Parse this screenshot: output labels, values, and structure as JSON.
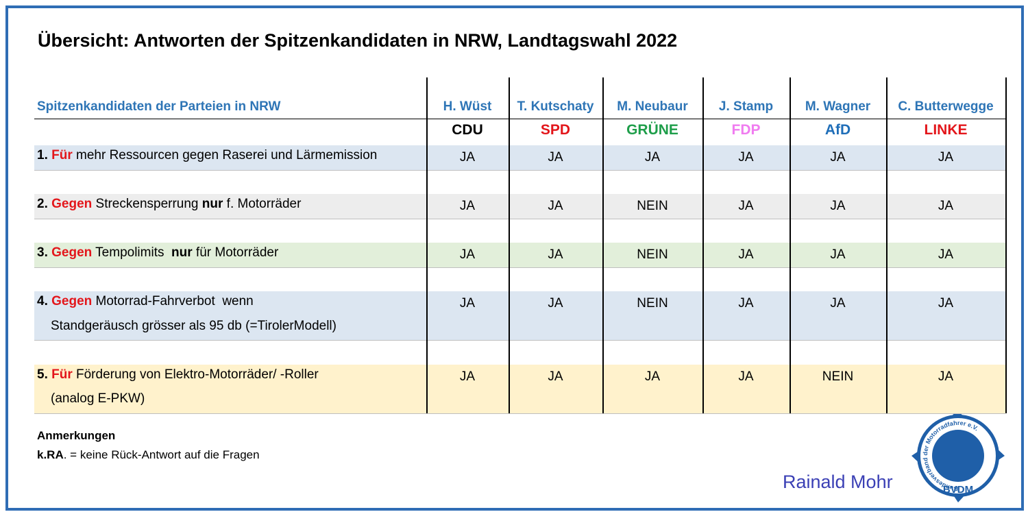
{
  "title": "Übersicht: Antworten der Spitzenkandidaten in NRW, Landtagswahl 2022",
  "table": {
    "header_label": "Spitzenkandidaten der Parteien in NRW",
    "candidates": [
      "H. Wüst",
      "T. Kutschaty",
      "M. Neubaur",
      "J. Stamp",
      "M. Wagner",
      "C. Butterwegge"
    ],
    "parties": [
      {
        "name": "CDU",
        "color": "#000000"
      },
      {
        "name": "SPD",
        "color": "#e3161b"
      },
      {
        "name": "GRÜNE",
        "color": "#1e9e4a"
      },
      {
        "name": "FDP",
        "color": "#f07cf0"
      },
      {
        "name": "AfD",
        "color": "#1f6eb8"
      },
      {
        "name": "LINKE",
        "color": "#e3161b"
      }
    ],
    "questions": [
      {
        "background": "#dce6f1",
        "lines": [
          [
            {
              "text": "1. ",
              "bold": true
            },
            {
              "text": "Für",
              "bold": true,
              "red": true
            },
            {
              "text": " mehr Ressourcen gegen Raserei und Lärmemission"
            }
          ]
        ],
        "answers": [
          "JA",
          "JA",
          "JA",
          "JA",
          "JA",
          "JA"
        ]
      },
      {
        "background": "#ededed",
        "lines": [
          [
            {
              "text": "2. ",
              "bold": true
            },
            {
              "text": "Gegen",
              "bold": true,
              "red": true
            },
            {
              "text": " Streckensperrung "
            },
            {
              "text": "nur",
              "bold": true
            },
            {
              "text": " f. Motorräder"
            }
          ]
        ],
        "answers": [
          "JA",
          "JA",
          "NEIN",
          "JA",
          "JA",
          "JA"
        ]
      },
      {
        "background": "#e2efda",
        "lines": [
          [
            {
              "text": "3. ",
              "bold": true
            },
            {
              "text": "Gegen",
              "bold": true,
              "red": true
            },
            {
              "text": " Tempolimits  "
            },
            {
              "text": "nur",
              "bold": true
            },
            {
              "text": " für Motorräder"
            }
          ]
        ],
        "answers": [
          "JA",
          "JA",
          "NEIN",
          "JA",
          "JA",
          "JA"
        ]
      },
      {
        "background": "#dce6f1",
        "lines": [
          [
            {
              "text": "4. ",
              "bold": true
            },
            {
              "text": "Gegen",
              "bold": true,
              "red": true
            },
            {
              "text": " Motorrad-Fahrverbot  wenn"
            }
          ],
          [
            {
              "text": "Standgeräusch grösser als 95 db (=TirolerModell)"
            }
          ]
        ],
        "answers": [
          "JA",
          "JA",
          "NEIN",
          "JA",
          "JA",
          "JA"
        ]
      },
      {
        "background": "#fff2cc",
        "lines": [
          [
            {
              "text": "5. ",
              "bold": true
            },
            {
              "text": "Für",
              "bold": true,
              "red": true
            },
            {
              "text": " Förderung von Elektro-Motorräder/ -Roller"
            }
          ],
          [
            {
              "text": "(analog E-PKW)"
            }
          ]
        ],
        "answers": [
          "JA",
          "JA",
          "JA",
          "JA",
          "NEIN",
          "JA"
        ]
      }
    ]
  },
  "notes": {
    "heading": "Anmerkungen",
    "line": [
      {
        "text": "k.RA",
        "bold": true
      },
      {
        "text": ". = keine Rück-Antwort auf die Fragen"
      }
    ]
  },
  "author": "Rainald Mohr",
  "logo": {
    "ring": "Bundesverband der Motorradfahrer e.V.",
    "name": "BVDM"
  }
}
